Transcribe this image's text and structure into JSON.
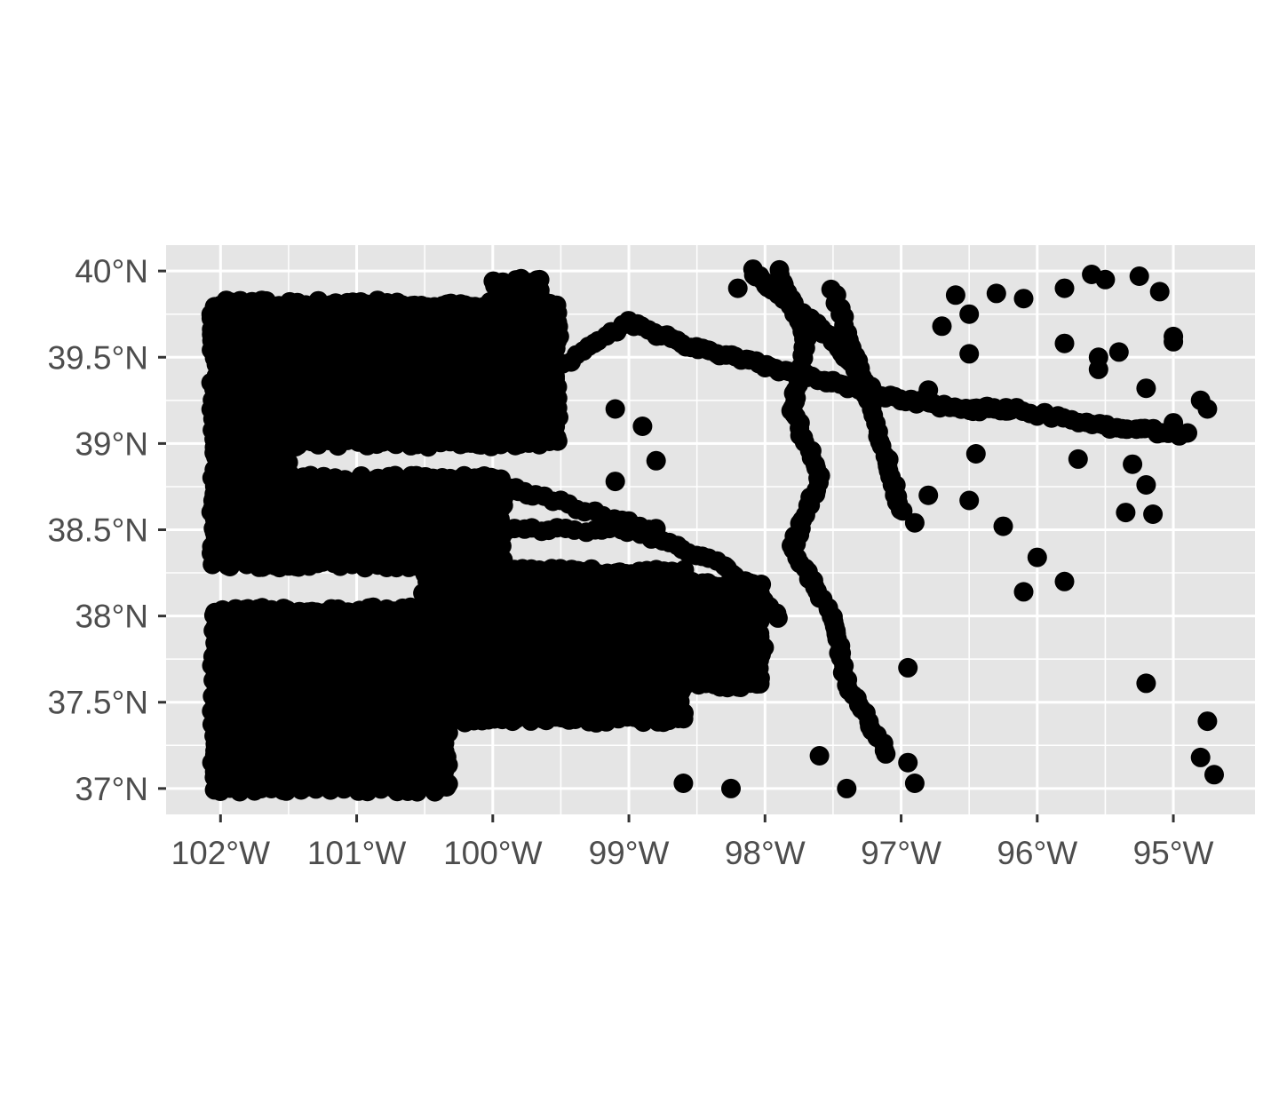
{
  "chart_data": {
    "type": "scatter",
    "title": "",
    "xlabel": "",
    "ylabel": "",
    "xlim": [
      -102.4,
      -94.4
    ],
    "ylim": [
      36.85,
      40.15
    ],
    "x_ticks": [
      {
        "value": -102,
        "label": "102°W"
      },
      {
        "value": -101,
        "label": "101°W"
      },
      {
        "value": -100,
        "label": "100°W"
      },
      {
        "value": -99,
        "label": "99°W"
      },
      {
        "value": -98,
        "label": "98°W"
      },
      {
        "value": -97,
        "label": "97°W"
      },
      {
        "value": -96,
        "label": "96°W"
      },
      {
        "value": -95,
        "label": "95°W"
      }
    ],
    "y_ticks": [
      {
        "value": 37.0,
        "label": "37°N"
      },
      {
        "value": 37.5,
        "label": "37.5°N"
      },
      {
        "value": 38.0,
        "label": "38°N"
      },
      {
        "value": 38.5,
        "label": "38.5°N"
      },
      {
        "value": 39.0,
        "label": "39°N"
      },
      {
        "value": 39.5,
        "label": "39.5°N"
      },
      {
        "value": 40.0,
        "label": "40°N"
      }
    ],
    "grid": true,
    "panel_background": "#e5e5e5",
    "grid_color": "#ffffff",
    "point_color": "#000000",
    "dense_regions": [
      {
        "lon": [
          -102.05,
          -100.3
        ],
        "lat": [
          37.0,
          38.05
        ]
      },
      {
        "lon": [
          -100.5,
          -98.6
        ],
        "lat": [
          37.4,
          38.3
        ]
      },
      {
        "lon": [
          -98.7,
          -98.0
        ],
        "lat": [
          37.6,
          38.2
        ]
      },
      {
        "lon": [
          -102.05,
          -99.9
        ],
        "lat": [
          38.3,
          38.8
        ]
      },
      {
        "lon": [
          -102.05,
          -101.5
        ],
        "lat": [
          38.5,
          39.05
        ]
      },
      {
        "lon": [
          -102.05,
          -99.5
        ],
        "lat": [
          39.0,
          39.85
        ]
      },
      {
        "lon": [
          -100.0,
          -99.6
        ],
        "lat": [
          39.45,
          39.95
        ]
      }
    ],
    "tracks": [
      {
        "lat": [
          39.4,
          39.7,
          39.55,
          39.45,
          39.35,
          39.25,
          39.2,
          39.2,
          39.1,
          39.05
        ],
        "lon": [
          -99.6,
          -99.0,
          -98.5,
          -98.0,
          -97.5,
          -97.0,
          -96.5,
          -96.2,
          -95.5,
          -94.9
        ]
      },
      {
        "lat": [
          40.0,
          39.6,
          39.2,
          38.8,
          38.4,
          38.0,
          37.6,
          37.2
        ],
        "lon": [
          -97.9,
          -97.7,
          -97.8,
          -97.6,
          -97.8,
          -97.5,
          -97.4,
          -97.1
        ]
      },
      {
        "lat": [
          39.9,
          39.4,
          38.9,
          38.6
        ],
        "lon": [
          -97.5,
          -97.3,
          -97.1,
          -97.0
        ]
      },
      {
        "lat": [
          38.5,
          38.5,
          38.3,
          38.0
        ],
        "lon": [
          -99.9,
          -99.0,
          -98.3,
          -97.9
        ]
      },
      {
        "lat": [
          38.8,
          38.7,
          38.5
        ],
        "lon": [
          -100.2,
          -99.7,
          -98.8
        ]
      },
      {
        "lat": [
          40.0,
          39.8,
          39.6,
          39.3
        ],
        "lon": [
          -98.1,
          -97.8,
          -97.5,
          -97.2
        ]
      }
    ],
    "isolated_points": [
      {
        "lon": -95.8,
        "lat": 39.9
      },
      {
        "lon": -95.6,
        "lat": 39.98
      },
      {
        "lon": -95.5,
        "lat": 39.95
      },
      {
        "lon": -95.25,
        "lat": 39.97
      },
      {
        "lon": -95.1,
        "lat": 39.88
      },
      {
        "lon": -96.1,
        "lat": 39.84
      },
      {
        "lon": -96.3,
        "lat": 39.87
      },
      {
        "lon": -96.6,
        "lat": 39.86
      },
      {
        "lon": -96.5,
        "lat": 39.75
      },
      {
        "lon": -96.7,
        "lat": 39.68
      },
      {
        "lon": -96.5,
        "lat": 39.52
      },
      {
        "lon": -95.8,
        "lat": 39.58
      },
      {
        "lon": -95.55,
        "lat": 39.5
      },
      {
        "lon": -95.4,
        "lat": 39.53
      },
      {
        "lon": -95.55,
        "lat": 39.43
      },
      {
        "lon": -95.0,
        "lat": 39.62
      },
      {
        "lon": -95.0,
        "lat": 39.59
      },
      {
        "lon": -95.2,
        "lat": 39.32
      },
      {
        "lon": -94.8,
        "lat": 39.25
      },
      {
        "lon": -94.75,
        "lat": 39.2
      },
      {
        "lon": -95.0,
        "lat": 39.12
      },
      {
        "lon": -95.7,
        "lat": 38.91
      },
      {
        "lon": -96.45,
        "lat": 38.94
      },
      {
        "lon": -96.8,
        "lat": 38.7
      },
      {
        "lon": -96.5,
        "lat": 38.67
      },
      {
        "lon": -96.25,
        "lat": 38.52
      },
      {
        "lon": -95.35,
        "lat": 38.6
      },
      {
        "lon": -95.15,
        "lat": 38.59
      },
      {
        "lon": -95.2,
        "lat": 38.76
      },
      {
        "lon": -95.3,
        "lat": 38.88
      },
      {
        "lon": -96.0,
        "lat": 38.34
      },
      {
        "lon": -96.1,
        "lat": 38.14
      },
      {
        "lon": -95.8,
        "lat": 38.2
      },
      {
        "lon": -95.2,
        "lat": 37.61
      },
      {
        "lon": -94.75,
        "lat": 37.39
      },
      {
        "lon": -94.8,
        "lat": 37.18
      },
      {
        "lon": -94.7,
        "lat": 37.08
      },
      {
        "lon": -96.8,
        "lat": 39.31
      },
      {
        "lon": -96.9,
        "lat": 38.54
      },
      {
        "lon": -96.95,
        "lat": 37.7
      },
      {
        "lon": -96.9,
        "lat": 37.03
      },
      {
        "lon": -96.95,
        "lat": 37.15
      },
      {
        "lon": -98.25,
        "lat": 37.0
      },
      {
        "lon": -97.4,
        "lat": 37.0
      },
      {
        "lon": -97.6,
        "lat": 37.19
      },
      {
        "lon": -98.6,
        "lat": 37.03
      },
      {
        "lon": -98.2,
        "lat": 39.9
      },
      {
        "lon": -98.8,
        "lat": 38.9
      },
      {
        "lon": -99.1,
        "lat": 39.2
      },
      {
        "lon": -99.1,
        "lat": 38.78
      },
      {
        "lon": -98.9,
        "lat": 39.1
      }
    ]
  }
}
